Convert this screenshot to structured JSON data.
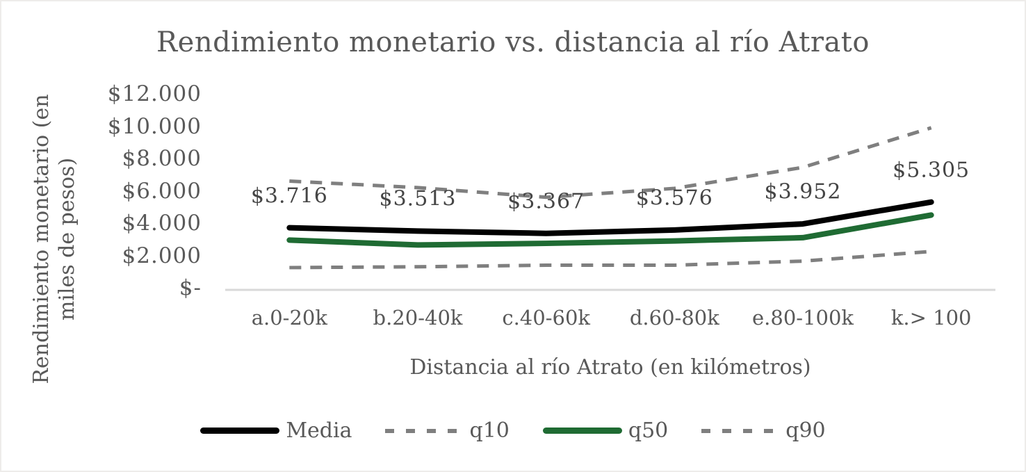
{
  "chart_data": {
    "type": "line",
    "title": "Rendimiento monetario vs. distancia al río Atrato",
    "xlabel": "Distancia al río Atrato (en kilómetros)",
    "ylabel": "Rendimiento monetario (en miles de pesos)",
    "ylabel_lines": {
      "line1": "Rendimiento monetario (en",
      "line2": "miles de pesos)"
    },
    "categories": [
      "a.0-20k",
      "b.20-40k",
      "c.40-60k",
      "d.60-80k",
      "e.80-100k",
      "k.> 100"
    ],
    "y_axis": {
      "min": 0,
      "max": 12000,
      "step": 2000,
      "tick_labels": [
        "$-",
        "$2.000",
        "$4.000",
        "$6.000",
        "$8.000",
        "$10.000",
        "$12.000"
      ],
      "grid": false
    },
    "legend_position": "bottom",
    "series": [
      {
        "name": "Media",
        "style": "solid",
        "color": "#000000",
        "values": [
          3716,
          3513,
          3367,
          3576,
          3952,
          5305
        ],
        "data_labels": [
          "$3.716",
          "$3.513",
          "$3.367",
          "$3.576",
          "$3.952",
          "$5.305"
        ]
      },
      {
        "name": "q10",
        "style": "dashed",
        "color": "#7f7f7f",
        "values": [
          1250,
          1300,
          1400,
          1400,
          1650,
          2250
        ],
        "data_labels": null
      },
      {
        "name": "q50",
        "style": "solid",
        "color": "#1f6b33",
        "values": [
          2950,
          2650,
          2750,
          2900,
          3100,
          4500
        ],
        "data_labels": null
      },
      {
        "name": "q90",
        "style": "dashed",
        "color": "#7f7f7f",
        "values": [
          6600,
          6200,
          5600,
          6150,
          7450,
          9900
        ],
        "data_labels": null
      }
    ],
    "colors": {
      "text": "#595959",
      "data_label_text": "#454545",
      "axis_line": "#d9d9d9"
    }
  }
}
